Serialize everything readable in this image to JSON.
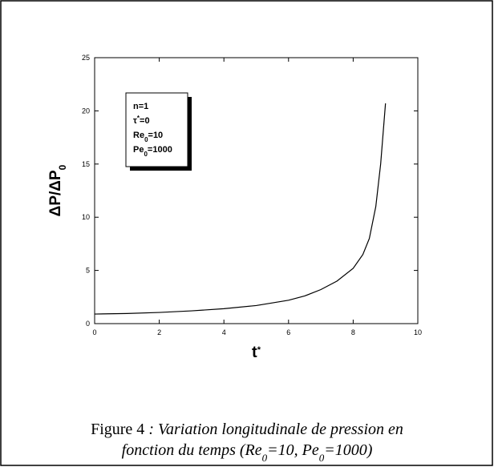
{
  "chart_data": {
    "type": "line",
    "x": [
      0,
      1,
      2,
      3,
      4,
      5,
      6,
      6.5,
      7,
      7.5,
      8,
      8.3,
      8.5,
      8.7,
      8.85,
      9
    ],
    "series": [
      {
        "color": "#000000",
        "values": [
          0.9,
          0.95,
          1.05,
          1.2,
          1.4,
          1.7,
          2.2,
          2.6,
          3.2,
          4.0,
          5.2,
          6.5,
          8,
          11,
          15,
          20.7
        ]
      }
    ],
    "xlim": [
      0,
      10
    ],
    "xticks": [
      0,
      2,
      4,
      6,
      8,
      10
    ],
    "ylim": [
      0,
      25
    ],
    "yticks": [
      0,
      5,
      10,
      15,
      20,
      25
    ],
    "xlabel": [
      {
        "t": "t"
      },
      {
        "t": "*",
        "sup": true
      }
    ],
    "ylabel": [
      {
        "t": "ΔP/ΔP"
      },
      {
        "t": "0",
        "sub": true
      }
    ],
    "annotation": [
      [
        {
          "t": "n=1"
        }
      ],
      [
        {
          "t": "τ"
        },
        {
          "t": "*",
          "sup": true
        },
        {
          "t": "=0"
        }
      ],
      [
        {
          "t": "Re"
        },
        {
          "t": "0",
          "sub": true
        },
        {
          "t": "=10"
        }
      ],
      [
        {
          "t": "Pe"
        },
        {
          "t": "0",
          "sub": true
        },
        {
          "t": "=1000"
        }
      ]
    ],
    "caption": [
      [
        {
          "t": "Figure 4 "
        },
        {
          "t": ": Variation longitudinale de pression  en",
          "i": true
        }
      ],
      [
        {
          "t": "fonction du temps (Re",
          "i": true
        },
        {
          "t": "0",
          "i": true,
          "sub": true
        },
        {
          "t": "=10, Pe",
          "i": true
        },
        {
          "t": "0",
          "i": true,
          "sub": true
        },
        {
          "t": "=1000)",
          "i": true
        }
      ]
    ]
  }
}
